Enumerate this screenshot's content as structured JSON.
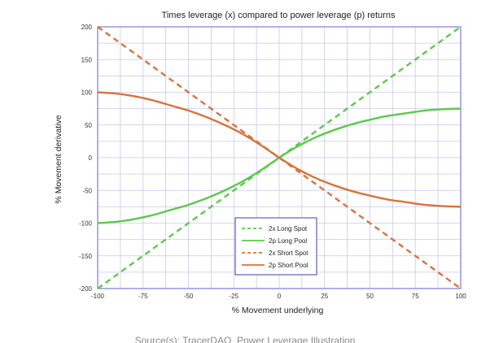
{
  "chart_data": {
    "type": "line",
    "title": "Times leverage (x) compared to power leverage (p) returns",
    "xlabel": "% Movement underlying",
    "ylabel": "% Movement derivative",
    "xlim": [
      -100,
      100
    ],
    "ylim": [
      -200,
      200
    ],
    "x_ticks": [
      -100,
      -75,
      -50,
      -25,
      0,
      25,
      50,
      75,
      100
    ],
    "y_ticks": [
      200,
      150,
      100,
      50,
      0,
      -50,
      -100,
      -150,
      -200
    ],
    "grid": true,
    "legend_position": "bottom-center",
    "x": [
      -100,
      -90,
      -80,
      -70,
      -60,
      -50,
      -40,
      -30,
      -20,
      -10,
      0,
      10,
      20,
      30,
      40,
      50,
      60,
      70,
      80,
      90,
      100
    ],
    "series": [
      {
        "name": "2x Long Spot",
        "style": "dashed",
        "color": "#5cc94a",
        "values": [
          -200,
          -180,
          -160,
          -140,
          -120,
          -100,
          -80,
          -60,
          -40,
          -20,
          0,
          20,
          40,
          60,
          80,
          100,
          120,
          140,
          160,
          180,
          200
        ]
      },
      {
        "name": "2p Long Pool",
        "style": "solid",
        "color": "#5cc94a",
        "values": [
          -100,
          -98,
          -94,
          -88,
          -80,
          -72,
          -62,
          -50,
          -36,
          -19,
          0,
          17,
          31,
          42,
          51,
          58,
          64,
          68,
          72,
          74,
          75
        ]
      },
      {
        "name": "2x Short Spot",
        "style": "dashed",
        "color": "#d9733a",
        "values": [
          200,
          180,
          160,
          140,
          120,
          100,
          80,
          60,
          40,
          20,
          0,
          -20,
          -40,
          -60,
          -80,
          -100,
          -120,
          -140,
          -160,
          -180,
          -200
        ]
      },
      {
        "name": "2p Short Pool",
        "style": "solid",
        "color": "#d9733a",
        "values": [
          100,
          98,
          94,
          88,
          80,
          72,
          62,
          50,
          36,
          19,
          0,
          -17,
          -31,
          -42,
          -51,
          -58,
          -64,
          -68,
          -72,
          -74,
          -75
        ]
      }
    ]
  },
  "colors": {
    "grid": "#c8c8ee",
    "frame": "#7b7bd0"
  },
  "caption": "Source(s): TracerDAO, Power Leverage Illustration"
}
